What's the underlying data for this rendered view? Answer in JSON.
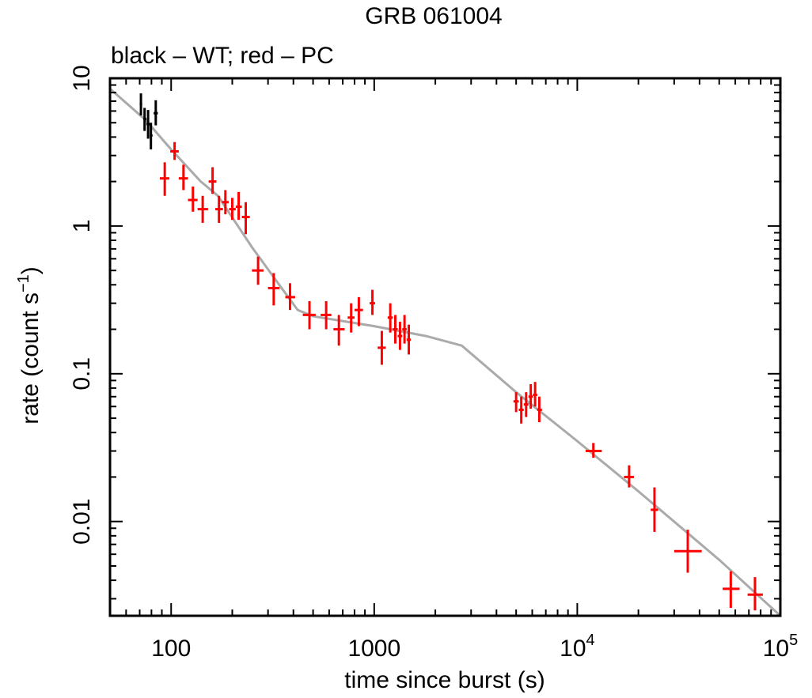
{
  "chart_data": {
    "type": "scatter",
    "title": "GRB 061004",
    "subtitle": "black – WT; red – PC",
    "xlabel": "time since burst (s)",
    "ylabel": "rate (count s",
    "ylabel_sup": "−1",
    "ylabel_close": ")",
    "xscale": "log",
    "yscale": "log",
    "xlim": [
      50,
      100000
    ],
    "ylim": [
      0.0023,
      10
    ],
    "x_ticks": [
      {
        "value": 100,
        "label": "100"
      },
      {
        "value": 1000,
        "label": "1000"
      },
      {
        "value": 10000,
        "base": "10",
        "exp": "4"
      },
      {
        "value": 100000,
        "base": "10",
        "exp": "5"
      }
    ],
    "y_ticks": [
      {
        "value": 10,
        "label": "10"
      },
      {
        "value": 1,
        "label": "1"
      },
      {
        "value": 0.1,
        "label": "0.1"
      },
      {
        "value": 0.01,
        "label": "0.01"
      }
    ],
    "colors": {
      "wt": "#000000",
      "pc": "#ff0000",
      "model": "#aaaaaa"
    },
    "series": [
      {
        "name": "WT",
        "points": [
          {
            "x": 71,
            "y": 6.7,
            "xlo": 70,
            "xhi": 72,
            "ylo": 5.6,
            "yhi": 7.9
          },
          {
            "x": 74,
            "y": 5.3,
            "xlo": 73,
            "xhi": 75.5,
            "ylo": 4.4,
            "yhi": 6.3
          },
          {
            "x": 77,
            "y": 4.9,
            "xlo": 75.5,
            "xhi": 78.5,
            "ylo": 3.9,
            "yhi": 6.1
          },
          {
            "x": 79.5,
            "y": 4.1,
            "xlo": 78.5,
            "xhi": 81,
            "ylo": 3.3,
            "yhi": 5.0
          },
          {
            "x": 84,
            "y": 5.8,
            "xlo": 82,
            "xhi": 86,
            "ylo": 4.8,
            "yhi": 7.1
          }
        ]
      },
      {
        "name": "PC",
        "points": [
          {
            "x": 93,
            "y": 2.1,
            "xlo": 88,
            "xhi": 98,
            "ylo": 1.6,
            "yhi": 2.7
          },
          {
            "x": 104,
            "y": 3.2,
            "xlo": 99,
            "xhi": 109,
            "ylo": 2.8,
            "yhi": 3.7
          },
          {
            "x": 115,
            "y": 2.1,
            "xlo": 109,
            "xhi": 121,
            "ylo": 1.75,
            "yhi": 2.6
          },
          {
            "x": 128,
            "y": 1.5,
            "xlo": 121,
            "xhi": 135,
            "ylo": 1.25,
            "yhi": 1.85
          },
          {
            "x": 143,
            "y": 1.3,
            "xlo": 135,
            "xhi": 152,
            "ylo": 1.05,
            "yhi": 1.6
          },
          {
            "x": 160,
            "y": 2.0,
            "xlo": 153,
            "xhi": 167,
            "ylo": 1.65,
            "yhi": 2.5
          },
          {
            "x": 172,
            "y": 1.3,
            "xlo": 165,
            "xhi": 180,
            "ylo": 1.05,
            "yhi": 1.6
          },
          {
            "x": 185,
            "y": 1.45,
            "xlo": 178,
            "xhi": 192,
            "ylo": 1.2,
            "yhi": 1.75
          },
          {
            "x": 200,
            "y": 1.3,
            "xlo": 193,
            "xhi": 208,
            "ylo": 1.1,
            "yhi": 1.55
          },
          {
            "x": 215,
            "y": 1.35,
            "xlo": 208,
            "xhi": 223,
            "ylo": 1.1,
            "yhi": 1.7
          },
          {
            "x": 233,
            "y": 1.15,
            "xlo": 223,
            "xhi": 244,
            "ylo": 0.88,
            "yhi": 1.45
          },
          {
            "x": 268,
            "y": 0.5,
            "xlo": 250,
            "xhi": 285,
            "ylo": 0.4,
            "yhi": 0.62
          },
          {
            "x": 320,
            "y": 0.38,
            "xlo": 300,
            "xhi": 342,
            "ylo": 0.29,
            "yhi": 0.48
          },
          {
            "x": 385,
            "y": 0.33,
            "xlo": 365,
            "xhi": 408,
            "ylo": 0.27,
            "yhi": 0.41
          },
          {
            "x": 480,
            "y": 0.25,
            "xlo": 445,
            "xhi": 515,
            "ylo": 0.2,
            "yhi": 0.31
          },
          {
            "x": 580,
            "y": 0.25,
            "xlo": 545,
            "xhi": 615,
            "ylo": 0.2,
            "yhi": 0.31
          },
          {
            "x": 670,
            "y": 0.2,
            "xlo": 630,
            "xhi": 715,
            "ylo": 0.155,
            "yhi": 0.25
          },
          {
            "x": 770,
            "y": 0.24,
            "xlo": 740,
            "xhi": 800,
            "ylo": 0.19,
            "yhi": 0.3
          },
          {
            "x": 840,
            "y": 0.27,
            "xlo": 800,
            "xhi": 880,
            "ylo": 0.21,
            "yhi": 0.33
          },
          {
            "x": 980,
            "y": 0.3,
            "xlo": 950,
            "xhi": 1010,
            "ylo": 0.25,
            "yhi": 0.37
          },
          {
            "x": 1090,
            "y": 0.15,
            "xlo": 1040,
            "xhi": 1140,
            "ylo": 0.115,
            "yhi": 0.195
          },
          {
            "x": 1200,
            "y": 0.24,
            "xlo": 1165,
            "xhi": 1235,
            "ylo": 0.19,
            "yhi": 0.3
          },
          {
            "x": 1270,
            "y": 0.2,
            "xlo": 1235,
            "xhi": 1305,
            "ylo": 0.16,
            "yhi": 0.25
          },
          {
            "x": 1340,
            "y": 0.18,
            "xlo": 1305,
            "xhi": 1375,
            "ylo": 0.145,
            "yhi": 0.225
          },
          {
            "x": 1410,
            "y": 0.2,
            "xlo": 1375,
            "xhi": 1445,
            "ylo": 0.16,
            "yhi": 0.25
          },
          {
            "x": 1480,
            "y": 0.17,
            "xlo": 1445,
            "xhi": 1515,
            "ylo": 0.135,
            "yhi": 0.215
          },
          {
            "x": 5000,
            "y": 0.065,
            "xlo": 4850,
            "xhi": 5150,
            "ylo": 0.055,
            "yhi": 0.075
          },
          {
            "x": 5300,
            "y": 0.057,
            "xlo": 5150,
            "xhi": 5450,
            "ylo": 0.046,
            "yhi": 0.07
          },
          {
            "x": 5600,
            "y": 0.062,
            "xlo": 5450,
            "xhi": 5750,
            "ylo": 0.051,
            "yhi": 0.075
          },
          {
            "x": 5900,
            "y": 0.07,
            "xlo": 5750,
            "xhi": 6050,
            "ylo": 0.058,
            "yhi": 0.085
          },
          {
            "x": 6200,
            "y": 0.072,
            "xlo": 6050,
            "xhi": 6350,
            "ylo": 0.06,
            "yhi": 0.088
          },
          {
            "x": 6500,
            "y": 0.057,
            "xlo": 6350,
            "xhi": 6700,
            "ylo": 0.047,
            "yhi": 0.07
          },
          {
            "x": 12000,
            "y": 0.03,
            "xlo": 11000,
            "xhi": 13200,
            "ylo": 0.027,
            "yhi": 0.034
          },
          {
            "x": 18000,
            "y": 0.02,
            "xlo": 17000,
            "xhi": 19000,
            "ylo": 0.017,
            "yhi": 0.024
          },
          {
            "x": 24000,
            "y": 0.012,
            "xlo": 23000,
            "xhi": 25000,
            "ylo": 0.0085,
            "yhi": 0.017
          },
          {
            "x": 35000,
            "y": 0.0063,
            "xlo": 30000,
            "xhi": 41000,
            "ylo": 0.0045,
            "yhi": 0.0088
          },
          {
            "x": 57000,
            "y": 0.0035,
            "xlo": 52000,
            "xhi": 63000,
            "ylo": 0.0026,
            "yhi": 0.0046
          },
          {
            "x": 75000,
            "y": 0.0032,
            "xlo": 69000,
            "xhi": 82000,
            "ylo": 0.0025,
            "yhi": 0.0042
          }
        ]
      },
      {
        "type": "line",
        "points": [
          {
            "x": 50,
            "y": 8.5
          },
          {
            "x": 75,
            "y": 5.2
          },
          {
            "x": 100,
            "y": 3.3
          },
          {
            "x": 140,
            "y": 2.0
          },
          {
            "x": 170,
            "y": 1.6
          },
          {
            "x": 250,
            "y": 0.72
          },
          {
            "x": 350,
            "y": 0.38
          },
          {
            "x": 420,
            "y": 0.27
          },
          {
            "x": 500,
            "y": 0.245
          },
          {
            "x": 1000,
            "y": 0.21
          },
          {
            "x": 1800,
            "y": 0.18
          },
          {
            "x": 2700,
            "y": 0.155
          },
          {
            "x": 5000,
            "y": 0.075
          },
          {
            "x": 10000,
            "y": 0.035
          },
          {
            "x": 20000,
            "y": 0.016
          },
          {
            "x": 50000,
            "y": 0.0055
          },
          {
            "x": 100000,
            "y": 0.0023
          }
        ]
      }
    ]
  }
}
